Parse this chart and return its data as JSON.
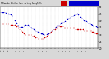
{
  "background_color": "#d8d8d8",
  "plot_bg_color": "#ffffff",
  "humidity_color": "#0000cc",
  "temp_color": "#cc0000",
  "humidity_data": [
    88,
    88,
    87,
    87,
    86,
    85,
    84,
    83,
    82,
    80,
    75,
    68,
    62,
    57,
    54,
    52,
    51,
    52,
    54,
    56,
    57,
    56,
    54,
    52,
    50,
    48,
    46,
    44,
    42,
    40,
    38,
    37,
    36,
    35,
    34,
    34,
    35,
    36,
    38,
    40,
    43,
    46,
    49,
    52,
    55,
    57,
    59,
    61,
    63,
    65,
    67,
    69,
    71,
    73,
    75,
    77,
    79,
    81,
    83,
    85,
    82,
    79,
    76,
    73,
    70,
    68,
    66,
    64,
    62,
    60,
    58,
    56,
    55,
    54,
    53,
    52
  ],
  "temp_data": [
    38,
    38,
    38,
    38,
    38,
    38,
    38,
    38,
    37,
    37,
    37,
    37,
    36,
    36,
    35,
    34,
    33,
    32,
    31,
    30,
    30,
    30,
    30,
    30,
    30,
    29,
    29,
    28,
    28,
    27,
    27,
    27,
    27,
    27,
    28,
    28,
    29,
    30,
    31,
    32,
    33,
    34,
    34,
    35,
    35,
    36,
    36,
    36,
    36,
    35,
    35,
    35,
    35,
    35,
    35,
    35,
    35,
    35,
    34,
    34,
    34,
    34,
    34,
    34,
    34,
    33,
    33,
    33,
    33,
    33,
    33,
    32,
    32,
    31,
    31,
    31
  ],
  "n_points": 76,
  "ylim_humidity": [
    0,
    100
  ],
  "ylim_temp": [
    20,
    50
  ],
  "yticks_right": [
    20,
    25,
    30,
    35,
    40,
    45,
    50
  ],
  "grid_color": "#bbbbbb",
  "dot_size": 1.2
}
